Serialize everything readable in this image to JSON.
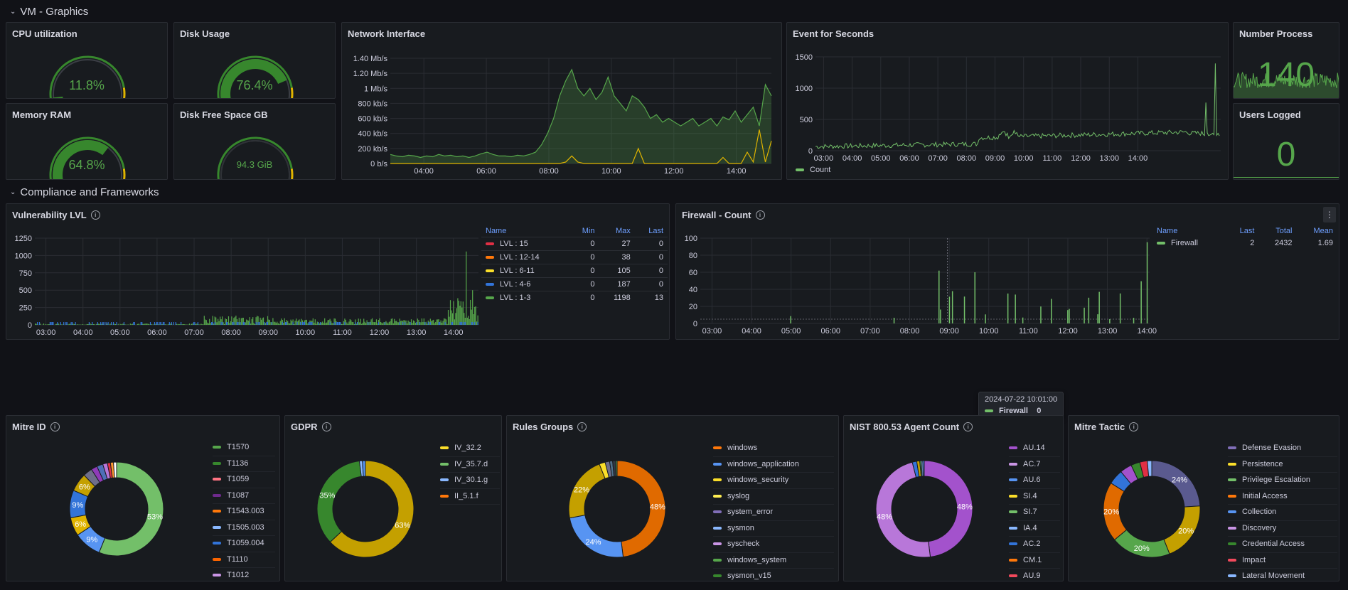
{
  "rows": {
    "vm": "VM - Graphics",
    "compliance": "Compliance and Frameworks"
  },
  "gauges": {
    "cpu": {
      "title": "CPU utilization",
      "value": "11.8%",
      "fraction": 0.118
    },
    "disk": {
      "title": "Disk Usage",
      "value": "76.4%",
      "fraction": 0.764
    },
    "mem": {
      "title": "Memory RAM",
      "value": "64.8%",
      "fraction": 0.648
    },
    "free": {
      "title": "Disk Free Space GB",
      "value": "94.3 GiB",
      "fraction": 0.0
    }
  },
  "stats": {
    "proc": {
      "title": "Number Process",
      "value": "140"
    },
    "users": {
      "title": "Users Logged",
      "value": "0"
    }
  },
  "network": {
    "title": "Network Interface",
    "chart_data": {
      "type": "area",
      "y_ticks": [
        "1.40 Mb/s",
        "1.20 Mb/s",
        "1 Mb/s",
        "800 kb/s",
        "600 kb/s",
        "400 kb/s",
        "200 kb/s",
        "0 b/s"
      ],
      "x_ticks": [
        "04:00",
        "06:00",
        "08:00",
        "10:00",
        "12:00",
        "14:00"
      ],
      "ylim": [
        0,
        1.4
      ],
      "series": [
        {
          "color": "#56a64b",
          "values": [
            0.12,
            0.1,
            0.09,
            0.11,
            0.1,
            0.08,
            0.1,
            0.09,
            0.12,
            0.1,
            0.11,
            0.09,
            0.1,
            0.08,
            0.1,
            0.13,
            0.15,
            0.12,
            0.1,
            0.1,
            0.09,
            0.11,
            0.1,
            0.12,
            0.15,
            0.25,
            0.4,
            0.6,
            0.9,
            1.1,
            1.25,
            1.0,
            0.9,
            1.0,
            0.85,
            0.95,
            1.15,
            0.9,
            0.8,
            0.7,
            0.9,
            0.85,
            0.75,
            0.6,
            0.65,
            0.55,
            0.6,
            0.55,
            0.5,
            0.55,
            0.6,
            0.5,
            0.55,
            0.6,
            0.5,
            0.62,
            0.58,
            0.7,
            0.55,
            0.65,
            0.75,
            0.5,
            1.05,
            0.9
          ]
        },
        {
          "color": "#e0b400",
          "values": [
            0,
            0,
            0,
            0,
            0,
            0,
            0,
            0,
            0,
            0,
            0,
            0,
            0,
            0,
            0,
            0,
            0,
            0,
            0,
            0,
            0,
            0,
            0,
            0,
            0,
            0,
            0,
            0,
            0,
            0.02,
            0.1,
            0.02,
            0,
            0,
            0,
            0,
            0,
            0,
            0,
            0,
            0,
            0.2,
            0,
            0,
            0,
            0,
            0,
            0,
            0,
            0,
            0,
            0,
            0,
            0,
            0,
            0.08,
            0,
            0,
            0,
            0.15,
            0.02,
            0.45,
            0.02,
            0.3
          ]
        }
      ]
    }
  },
  "events": {
    "title": "Event for Seconds",
    "legend": "Count",
    "chart_data": {
      "type": "line",
      "y_ticks": [
        "1500",
        "1000",
        "500",
        "0"
      ],
      "x_ticks": [
        "03:00",
        "04:00",
        "05:00",
        "06:00",
        "07:00",
        "08:00",
        "09:00",
        "10:00",
        "11:00",
        "12:00",
        "13:00",
        "14:00"
      ],
      "ylim": [
        0,
        1700
      ],
      "series": [
        {
          "name": "Count",
          "color": "#73bf69"
        }
      ]
    }
  },
  "vuln": {
    "title": "Vulnerability LVL",
    "chart_data": {
      "type": "bar",
      "y_ticks": [
        "1250",
        "1000",
        "750",
        "500",
        "250",
        "0"
      ],
      "x_ticks": [
        "03:00",
        "04:00",
        "05:00",
        "06:00",
        "07:00",
        "08:00",
        "09:00",
        "10:00",
        "11:00",
        "12:00",
        "13:00",
        "14:00"
      ],
      "ylim": [
        0,
        1300
      ]
    },
    "legend": {
      "headers": [
        "Name",
        "Min",
        "Max",
        "Last"
      ],
      "rows": [
        {
          "name": "LVL : 15",
          "color": "#e02f44",
          "min": "0",
          "max": "27",
          "last": "0"
        },
        {
          "name": "LVL : 12-14",
          "color": "#ff780a",
          "min": "0",
          "max": "38",
          "last": "0"
        },
        {
          "name": "LVL : 6-11",
          "color": "#fade2a",
          "min": "0",
          "max": "105",
          "last": "0"
        },
        {
          "name": "LVL : 4-6",
          "color": "#3274d9",
          "min": "0",
          "max": "187",
          "last": "0"
        },
        {
          "name": "LVL : 1-3",
          "color": "#56a64b",
          "min": "0",
          "max": "1198",
          "last": "13"
        }
      ]
    }
  },
  "firewall": {
    "title": "Firewall - Count",
    "menu": "⋮",
    "chart_data": {
      "type": "bar",
      "y_ticks": [
        "100",
        "80",
        "60",
        "40",
        "20",
        "0"
      ],
      "x_ticks": [
        "03:00",
        "04:00",
        "05:00",
        "06:00",
        "07:00",
        "08:00",
        "09:00",
        "10:00",
        "11:00",
        "12:00",
        "13:00",
        "14:00"
      ],
      "ylim": [
        0,
        105
      ]
    },
    "legend": {
      "headers": [
        "Name",
        "Last",
        "Total",
        "Mean"
      ],
      "rows": [
        {
          "name": "Firewall",
          "color": "#73bf69",
          "last": "2",
          "total": "2432",
          "mean": "1.69"
        }
      ]
    },
    "tooltip": {
      "time": "2024-07-22 10:01:00",
      "label": "Firewall",
      "value": "0"
    }
  },
  "mitre_id": {
    "title": "Mitre ID",
    "chart_data": {
      "type": "pie",
      "slices": [
        {
          "label": "T1570",
          "value": 53,
          "color": "#73bf69"
        },
        {
          "label": "T1136",
          "value": 9,
          "color": "#5794f2"
        },
        {
          "label": "T1059",
          "value": 6,
          "color": "#e0b400"
        },
        {
          "label": "T1087",
          "value": 9,
          "color": "#3274d9"
        },
        {
          "label": "T1543.003",
          "value": 6,
          "color": "#c4a000"
        },
        {
          "label": "T1505.003",
          "value": 3,
          "color": "#6e6e8a"
        },
        {
          "label": "T1059.004",
          "value": 2,
          "color": "#8f3bb8"
        },
        {
          "label": "T1110",
          "value": 2,
          "color": "#4f6fb8"
        },
        {
          "label": "T1012",
          "value": 1.5,
          "color": "#b877d9"
        },
        {
          "label": "",
          "value": 1,
          "color": "#e02f44"
        },
        {
          "label": "",
          "value": 1,
          "color": "#ff9830"
        },
        {
          "label": "",
          "value": 1,
          "color": "#ffffff"
        }
      ],
      "shown_labels": [
        "53%",
        "9%",
        "6%",
        "9%",
        "6%"
      ]
    },
    "legend": [
      {
        "label": "T1570",
        "color": "#56a64b"
      },
      {
        "label": "T1136",
        "color": "#37872d"
      },
      {
        "label": "T1059",
        "color": "#ff7383"
      },
      {
        "label": "T1087",
        "color": "#6e2a8c"
      },
      {
        "label": "T1543.003",
        "color": "#ff780a"
      },
      {
        "label": "T1505.003",
        "color": "#8ab8ff"
      },
      {
        "label": "T1059.004",
        "color": "#3274d9"
      },
      {
        "label": "T1110",
        "color": "#fa6400"
      },
      {
        "label": "T1012",
        "color": "#ca95e5"
      }
    ]
  },
  "gdpr": {
    "title": "GDPR",
    "chart_data": {
      "type": "pie",
      "slices": [
        {
          "label": "IV_32.2",
          "value": 63,
          "color": "#c4a000"
        },
        {
          "label": "IV_35.7.d",
          "value": 35,
          "color": "#37872d"
        },
        {
          "label": "IV_30.1.g",
          "value": 1,
          "color": "#8ab8ff"
        },
        {
          "label": "II_5.1.f",
          "value": 1,
          "color": "#5794f2"
        }
      ]
    },
    "legend": [
      {
        "label": "IV_32.2",
        "color": "#fade2a"
      },
      {
        "label": "IV_35.7.d",
        "color": "#73bf69"
      },
      {
        "label": "IV_30.1.g",
        "color": "#8ab8ff"
      },
      {
        "label": "II_5.1.f",
        "color": "#ff780a"
      }
    ]
  },
  "rules": {
    "title": "Rules Groups",
    "chart_data": {
      "type": "pie",
      "slices": [
        {
          "label": "windows",
          "value": 48,
          "color": "#e06a00"
        },
        {
          "label": "windows_application",
          "value": 24,
          "color": "#5794f2"
        },
        {
          "label": "windows_security",
          "value": 22,
          "color": "#c4a000"
        },
        {
          "label": "syslog",
          "value": 2,
          "color": "#fade2a"
        },
        {
          "label": "system_error",
          "value": 1.5,
          "color": "#6e6e8a"
        },
        {
          "label": "sysmon",
          "value": 1,
          "color": "#4f6f8a"
        },
        {
          "label": "syscheck",
          "value": 1,
          "color": "#303844"
        },
        {
          "label": "windows_system",
          "value": 0.5,
          "color": "#56a64b"
        }
      ]
    },
    "legend": [
      {
        "label": "windows",
        "color": "#ff780a"
      },
      {
        "label": "windows_application",
        "color": "#5794f2"
      },
      {
        "label": "windows_security",
        "color": "#fade2a"
      },
      {
        "label": "syslog",
        "color": "#ffee52"
      },
      {
        "label": "system_error",
        "color": "#806eb7"
      },
      {
        "label": "sysmon",
        "color": "#8ab8ff"
      },
      {
        "label": "syscheck",
        "color": "#ca95e5"
      },
      {
        "label": "windows_system",
        "color": "#56a64b"
      },
      {
        "label": "sysmon_v15",
        "color": "#37872d"
      }
    ]
  },
  "nist": {
    "title": "NIST 800.53 Agent Count",
    "chart_data": {
      "type": "pie",
      "slices": [
        {
          "label": "AU.14",
          "value": 48,
          "color": "#a352cc"
        },
        {
          "label": "AC.7",
          "value": 48,
          "color": "#b877d9"
        },
        {
          "label": "AU.6",
          "value": 1.5,
          "color": "#3274d9"
        },
        {
          "label": "SI.4",
          "value": 1,
          "color": "#c4a000"
        },
        {
          "label": "SI.7",
          "value": 0.5,
          "color": "#56a64b"
        },
        {
          "label": "IA.4",
          "value": 0.5,
          "color": "#8ab8ff"
        },
        {
          "label": "AC.2",
          "value": 0.5,
          "color": "#5794f2"
        }
      ]
    },
    "legend": [
      {
        "label": "AU.14",
        "color": "#a352cc"
      },
      {
        "label": "AC.7",
        "color": "#ca95e5"
      },
      {
        "label": "AU.6",
        "color": "#5794f2"
      },
      {
        "label": "SI.4",
        "color": "#fade2a"
      },
      {
        "label": "SI.7",
        "color": "#73bf69"
      },
      {
        "label": "IA.4",
        "color": "#8ab8ff"
      },
      {
        "label": "AC.2",
        "color": "#3274d9"
      },
      {
        "label": "CM.1",
        "color": "#ff780a"
      },
      {
        "label": "AU.9",
        "color": "#f2495c"
      }
    ]
  },
  "tactic": {
    "title": "Mitre Tactic",
    "chart_data": {
      "type": "pie",
      "slices": [
        {
          "label": "Defense Evasion",
          "value": 24,
          "color": "#5a5a8f"
        },
        {
          "label": "Persistence",
          "value": 20,
          "color": "#c4a000"
        },
        {
          "label": "Privilege Escalation",
          "value": 20,
          "color": "#56a64b"
        },
        {
          "label": "Initial Access",
          "value": 20,
          "color": "#e06a00"
        },
        {
          "label": "Collection",
          "value": 5,
          "color": "#3274d9"
        },
        {
          "label": "Discovery",
          "value": 4,
          "color": "#a352cc"
        },
        {
          "label": "Credential Access",
          "value": 3,
          "color": "#37872d"
        },
        {
          "label": "Impact",
          "value": 2.5,
          "color": "#e02f44"
        },
        {
          "label": "Lateral Movement",
          "value": 1.5,
          "color": "#8ab8ff"
        }
      ]
    },
    "legend": [
      {
        "label": "Defense Evasion",
        "color": "#806eb7"
      },
      {
        "label": "Persistence",
        "color": "#fade2a"
      },
      {
        "label": "Privilege Escalation",
        "color": "#73bf69"
      },
      {
        "label": "Initial Access",
        "color": "#ff780a"
      },
      {
        "label": "Collection",
        "color": "#5794f2"
      },
      {
        "label": "Discovery",
        "color": "#ca95e5"
      },
      {
        "label": "Credential Access",
        "color": "#37872d"
      },
      {
        "label": "Impact",
        "color": "#f2495c"
      },
      {
        "label": "Lateral Movement",
        "color": "#8ab8ff"
      }
    ]
  }
}
